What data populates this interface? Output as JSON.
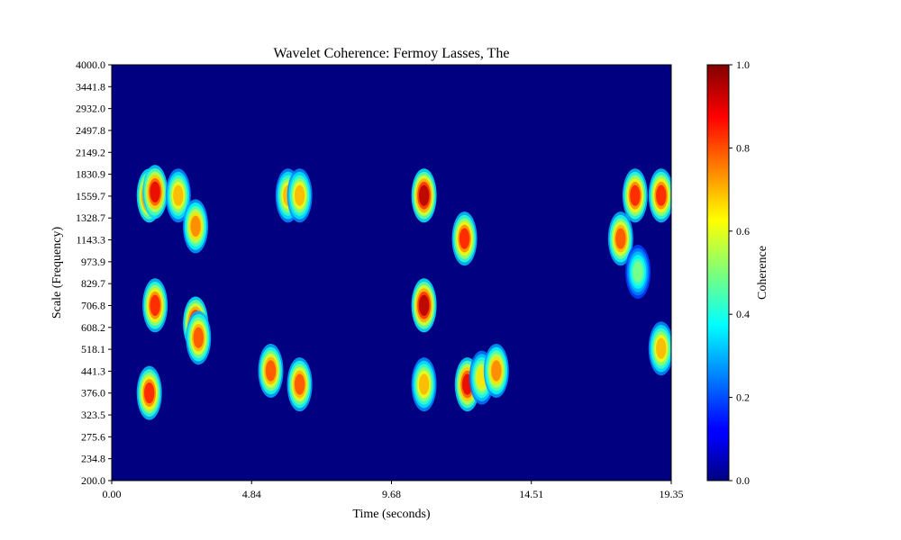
{
  "chart_data": {
    "type": "heatmap",
    "title": "Wavelet Coherence: Fermoy Lasses, The",
    "xlabel": "Time (seconds)",
    "ylabel": "Scale (Frequency)",
    "xlim": [
      0.0,
      19.35
    ],
    "ylim": [
      200.0,
      4000.0
    ],
    "x_ticks": [
      "0.00",
      "4.84",
      "9.68",
      "14.51",
      "19.35"
    ],
    "y_ticks": [
      "200.0",
      "234.8",
      "275.6",
      "323.5",
      "376.0",
      "441.3",
      "518.1",
      "608.2",
      "706.8",
      "829.7",
      "973.9",
      "1143.3",
      "1328.7",
      "1559.7",
      "1830.9",
      "2149.2",
      "2497.8",
      "2932.0",
      "3441.8",
      "4000.0"
    ],
    "colormap": "jet",
    "colorbar": {
      "label": "Coherence",
      "range": [
        0.0,
        1.0
      ],
      "ticks": [
        "0.0",
        "0.2",
        "0.4",
        "0.6",
        "0.8",
        "1.0"
      ]
    },
    "hotspots": [
      {
        "t": 1.3,
        "scale": 1559.7,
        "value": 0.95
      },
      {
        "t": 1.5,
        "scale": 1600.0,
        "value": 0.9
      },
      {
        "t": 1.5,
        "scale": 706.8,
        "value": 0.85
      },
      {
        "t": 1.3,
        "scale": 376.0,
        "value": 0.85
      },
      {
        "t": 2.3,
        "scale": 1559.7,
        "value": 0.7
      },
      {
        "t": 2.9,
        "scale": 1250.0,
        "value": 0.75
      },
      {
        "t": 2.9,
        "scale": 620.0,
        "value": 0.95
      },
      {
        "t": 3.0,
        "scale": 560.0,
        "value": 0.8
      },
      {
        "t": 5.5,
        "scale": 441.3,
        "value": 0.8
      },
      {
        "t": 6.5,
        "scale": 400.0,
        "value": 0.8
      },
      {
        "t": 6.1,
        "scale": 1559.7,
        "value": 0.7
      },
      {
        "t": 6.5,
        "scale": 1559.7,
        "value": 0.7
      },
      {
        "t": 10.8,
        "scale": 1559.7,
        "value": 0.95
      },
      {
        "t": 10.8,
        "scale": 706.8,
        "value": 0.95
      },
      {
        "t": 10.8,
        "scale": 400.0,
        "value": 0.7
      },
      {
        "t": 12.2,
        "scale": 1143.3,
        "value": 0.85
      },
      {
        "t": 12.3,
        "scale": 400.0,
        "value": 0.9
      },
      {
        "t": 12.8,
        "scale": 420.0,
        "value": 0.65
      },
      {
        "t": 13.3,
        "scale": 441.3,
        "value": 0.75
      },
      {
        "t": 17.6,
        "scale": 1143.3,
        "value": 0.8
      },
      {
        "t": 18.1,
        "scale": 1559.7,
        "value": 0.85
      },
      {
        "t": 19.0,
        "scale": 1559.7,
        "value": 0.85
      },
      {
        "t": 19.0,
        "scale": 518.1,
        "value": 0.7
      },
      {
        "t": 18.2,
        "scale": 900.0,
        "value": 0.5
      }
    ]
  }
}
